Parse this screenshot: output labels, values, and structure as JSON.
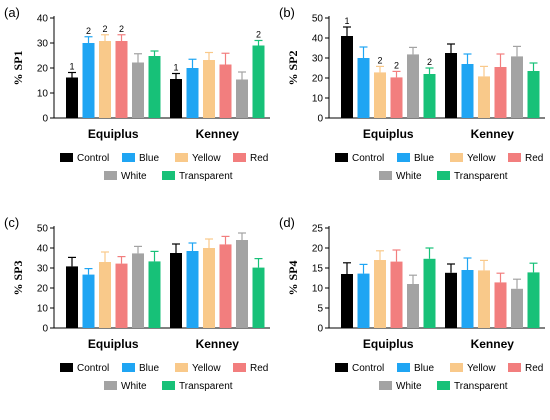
{
  "colors": {
    "Control": "#000000",
    "Blue": "#1fa5f3",
    "Yellow": "#f9c98a",
    "Red": "#f27e7e",
    "White": "#a3a3a3",
    "Transparent": "#17c178"
  },
  "chart_data": [
    {
      "panel": "(a)",
      "type": "bar",
      "ylabel": "% SP1",
      "ylim": [
        0,
        40
      ],
      "yticks": [
        0,
        10,
        20,
        30,
        40
      ],
      "categories": [
        "Equiplus",
        "Kenney"
      ],
      "legend_rows": [
        [
          "Control",
          "Blue",
          "Yellow",
          "Red"
        ],
        [
          "White",
          "Transparent"
        ]
      ],
      "series": [
        {
          "name": "Control",
          "values": [
            16.2,
            15.6
          ],
          "errors": [
            2.0,
            2.2
          ],
          "annotations": [
            "1",
            "1"
          ]
        },
        {
          "name": "Blue",
          "values": [
            30.0,
            20.0
          ],
          "errors": [
            2.5,
            3.5
          ],
          "annotations": [
            "2",
            ""
          ]
        },
        {
          "name": "Yellow",
          "values": [
            30.8,
            23.2
          ],
          "errors": [
            2.5,
            3.0
          ],
          "annotations": [
            "2",
            ""
          ]
        },
        {
          "name": "Red",
          "values": [
            30.8,
            21.4
          ],
          "errors": [
            2.5,
            4.5
          ],
          "annotations": [
            "2",
            ""
          ]
        },
        {
          "name": "White",
          "values": [
            22.2,
            15.4
          ],
          "errors": [
            3.5,
            3.0
          ],
          "annotations": [
            "",
            ""
          ]
        },
        {
          "name": "Transparent",
          "values": [
            24.8,
            29.0
          ],
          "errors": [
            2.0,
            2.0
          ],
          "annotations": [
            "",
            "2"
          ]
        }
      ]
    },
    {
      "panel": "(b)",
      "type": "bar",
      "ylabel": "% SP2",
      "ylim": [
        0,
        50
      ],
      "yticks": [
        0,
        10,
        20,
        30,
        40,
        50
      ],
      "categories": [
        "Equiplus",
        "Kenney"
      ],
      "legend_rows": [
        [
          "Control",
          "Blue",
          "Yellow",
          "Red"
        ],
        [
          "White",
          "Transparent"
        ]
      ],
      "series": [
        {
          "name": "Control",
          "values": [
            41.0,
            32.5
          ],
          "errors": [
            4.5,
            4.5
          ],
          "annotations": [
            "1",
            ""
          ]
        },
        {
          "name": "Blue",
          "values": [
            30.0,
            27.0
          ],
          "errors": [
            5.5,
            5.0
          ],
          "annotations": [
            "",
            ""
          ]
        },
        {
          "name": "Yellow",
          "values": [
            22.8,
            20.8
          ],
          "errors": [
            3.0,
            5.0
          ],
          "annotations": [
            "2",
            ""
          ]
        },
        {
          "name": "Red",
          "values": [
            20.3,
            25.5
          ],
          "errors": [
            3.0,
            6.5
          ],
          "annotations": [
            "2",
            ""
          ]
        },
        {
          "name": "White",
          "values": [
            31.8,
            30.8
          ],
          "errors": [
            3.5,
            5.0
          ],
          "annotations": [
            "",
            ""
          ]
        },
        {
          "name": "Transparent",
          "values": [
            22.0,
            23.5
          ],
          "errors": [
            3.0,
            4.0
          ],
          "annotations": [
            "2",
            ""
          ]
        }
      ]
    },
    {
      "panel": "(c)",
      "type": "bar",
      "ylabel": "% SP3",
      "ylim": [
        0,
        50
      ],
      "yticks": [
        0,
        10,
        20,
        30,
        40,
        50
      ],
      "categories": [
        "Equiplus",
        "Kenney"
      ],
      "legend_rows": [
        [
          "Control",
          "Blue",
          "Yellow",
          "Red"
        ],
        [
          "White",
          "Transparent"
        ]
      ],
      "series": [
        {
          "name": "Control",
          "values": [
            30.8,
            37.5
          ],
          "errors": [
            4.5,
            4.5
          ],
          "annotations": [
            "",
            ""
          ]
        },
        {
          "name": "Blue",
          "values": [
            26.7,
            38.5
          ],
          "errors": [
            3.0,
            4.0
          ],
          "annotations": [
            "",
            ""
          ]
        },
        {
          "name": "Yellow",
          "values": [
            33.0,
            40.0
          ],
          "errors": [
            5.0,
            4.5
          ],
          "annotations": [
            "",
            ""
          ]
        },
        {
          "name": "Red",
          "values": [
            32.2,
            41.8
          ],
          "errors": [
            3.5,
            4.0
          ],
          "annotations": [
            "",
            ""
          ]
        },
        {
          "name": "White",
          "values": [
            37.3,
            44.0
          ],
          "errors": [
            3.5,
            3.5
          ],
          "annotations": [
            "",
            ""
          ]
        },
        {
          "name": "Transparent",
          "values": [
            33.3,
            30.2
          ],
          "errors": [
            5.0,
            4.5
          ],
          "annotations": [
            "",
            ""
          ]
        }
      ]
    },
    {
      "panel": "(d)",
      "type": "bar",
      "ylabel": "% SP4",
      "ylim": [
        0,
        25
      ],
      "yticks": [
        0,
        5,
        10,
        15,
        20,
        25
      ],
      "categories": [
        "Equiplus",
        "Kenney"
      ],
      "legend_rows": [
        [
          "Control",
          "Blue",
          "Yellow",
          "Red"
        ],
        [
          "White",
          "Transparent"
        ]
      ],
      "series": [
        {
          "name": "Control",
          "values": [
            13.5,
            13.8
          ],
          "errors": [
            2.8,
            2.2
          ],
          "annotations": [
            "",
            ""
          ]
        },
        {
          "name": "Blue",
          "values": [
            13.6,
            14.5
          ],
          "errors": [
            2.3,
            3.0
          ],
          "annotations": [
            "",
            ""
          ]
        },
        {
          "name": "Yellow",
          "values": [
            17.0,
            14.4
          ],
          "errors": [
            2.3,
            2.5
          ],
          "annotations": [
            "",
            ""
          ]
        },
        {
          "name": "Red",
          "values": [
            16.6,
            11.4
          ],
          "errors": [
            2.9,
            2.3
          ],
          "annotations": [
            "",
            ""
          ]
        },
        {
          "name": "White",
          "values": [
            11.0,
            9.8
          ],
          "errors": [
            2.2,
            2.4
          ],
          "annotations": [
            "",
            ""
          ]
        },
        {
          "name": "Transparent",
          "values": [
            17.3,
            13.9
          ],
          "errors": [
            2.7,
            2.3
          ],
          "annotations": [
            "",
            ""
          ]
        }
      ]
    }
  ]
}
